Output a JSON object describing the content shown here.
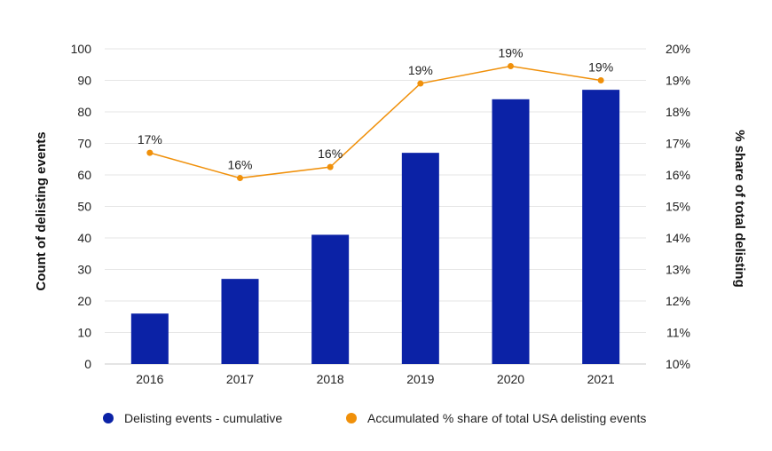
{
  "chart_data": {
    "type": "bar",
    "categories": [
      "2016",
      "2017",
      "2018",
      "2019",
      "2020",
      "2021"
    ],
    "series": [
      {
        "name": "Delisting events - cumulative",
        "type": "bar",
        "axis": "left",
        "color": "#0B22A6",
        "values": [
          16,
          27,
          41,
          67,
          84,
          87
        ]
      },
      {
        "name": "Accumulated % share of total USA delisting events",
        "type": "line",
        "axis": "right",
        "color": "#F0900A",
        "values": [
          16.7,
          15.9,
          16.25,
          18.9,
          19.45,
          19.0
        ],
        "data_labels": [
          "17%",
          "16%",
          "16%",
          "19%",
          "19%",
          "19%"
        ]
      }
    ],
    "ylabel": "Count of delisting events",
    "ylabel_right": "% share of total delisting",
    "ylim": [
      0,
      100
    ],
    "ylim_right": [
      10,
      20
    ],
    "yticks": [
      "0",
      "10",
      "20",
      "30",
      "40",
      "50",
      "60",
      "70",
      "80",
      "90",
      "100"
    ],
    "yticks_right": [
      "10%",
      "11%",
      "12%",
      "13%",
      "14%",
      "15%",
      "16%",
      "17%",
      "18%",
      "19%",
      "20%"
    ],
    "grid": true,
    "legend_position": "bottom"
  }
}
